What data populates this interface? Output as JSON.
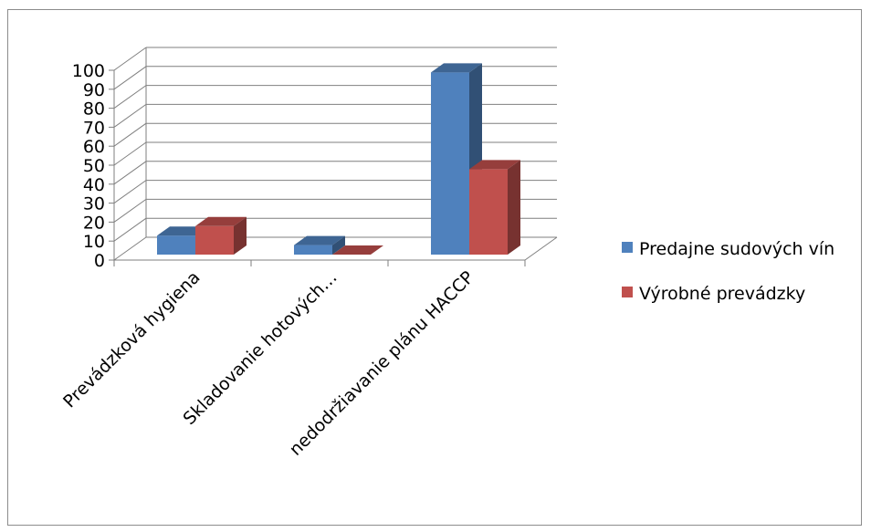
{
  "chart_data": {
    "type": "bar",
    "title": "",
    "xlabel": "",
    "ylabel": "",
    "ylim": [
      0,
      100
    ],
    "yticks": [
      0,
      10,
      20,
      30,
      40,
      50,
      60,
      70,
      80,
      90,
      100
    ],
    "categories": [
      "Prevádzková hygiena",
      "Skladovanie hotových…",
      "nedodržiavanie plánu HACCP"
    ],
    "series": [
      {
        "name": "Predajne sudových vín",
        "values": [
          10,
          5,
          96
        ],
        "color": "#4f81bd"
      },
      {
        "name": "Výrobné prevádzky",
        "values": [
          15,
          0,
          45
        ],
        "color": "#c0504d"
      }
    ],
    "legend": "right",
    "grid": true
  }
}
